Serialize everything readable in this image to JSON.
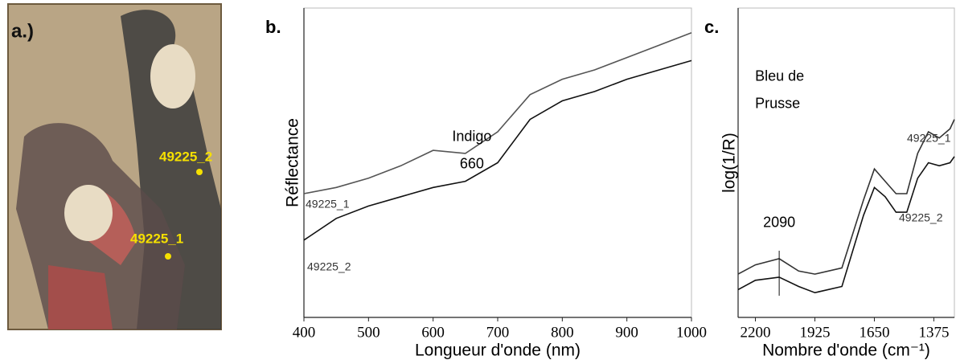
{
  "image_panel": {
    "label": "a.)",
    "points": [
      "49225_2",
      "49225_1"
    ]
  },
  "chart_data": [
    {
      "type": "line",
      "panel_label": "b.",
      "xlabel": "Longueur d'onde (nm)",
      "ylabel": "Réflectance",
      "xlim": [
        400,
        1000
      ],
      "xticks": [
        400,
        500,
        600,
        700,
        800,
        900,
        1000
      ],
      "ylim": [
        0,
        1
      ],
      "x": [
        400,
        450,
        500,
        550,
        600,
        650,
        700,
        750,
        800,
        850,
        900,
        950,
        1000
      ],
      "series": [
        {
          "name": "49225_1",
          "color": "#555555",
          "values": [
            0.4,
            0.42,
            0.45,
            0.49,
            0.54,
            0.53,
            0.6,
            0.72,
            0.77,
            0.8,
            0.84,
            0.88,
            0.92
          ]
        },
        {
          "name": "49225_2",
          "color": "#111111",
          "values": [
            0.25,
            0.32,
            0.36,
            0.39,
            0.42,
            0.44,
            0.5,
            0.64,
            0.7,
            0.73,
            0.77,
            0.8,
            0.83
          ]
        }
      ],
      "annotations": [
        {
          "text": "Indigo",
          "x": 660
        }
      ]
    },
    {
      "type": "line",
      "panel_label": "c.",
      "xlabel": "Nombre d'onde (cm⁻¹)",
      "ylabel": "log(1/R)",
      "xlim": [
        2280,
        1280
      ],
      "xticks": [
        2200,
        1925,
        1650,
        1375
      ],
      "ylim": [
        0,
        1
      ],
      "x": [
        2280,
        2200,
        2090,
        2000,
        1925,
        1800,
        1700,
        1650,
        1600,
        1550,
        1500,
        1450,
        1400,
        1350,
        1300,
        1280
      ],
      "series": [
        {
          "name": "49225_1",
          "color": "#333333",
          "values": [
            0.14,
            0.17,
            0.19,
            0.15,
            0.14,
            0.16,
            0.38,
            0.48,
            0.44,
            0.4,
            0.4,
            0.53,
            0.6,
            0.58,
            0.61,
            0.64
          ]
        },
        {
          "name": "49225_2",
          "color": "#111111",
          "values": [
            0.09,
            0.12,
            0.13,
            0.1,
            0.08,
            0.1,
            0.33,
            0.42,
            0.39,
            0.34,
            0.34,
            0.45,
            0.5,
            0.49,
            0.5,
            0.52
          ]
        }
      ],
      "annotations": [
        {
          "text": "Bleu de",
          "x": 2090
        },
        {
          "text": "Prusse",
          "x": 2090
        }
      ]
    }
  ],
  "markers": [
    {
      "x": 660
    },
    {
      "x": 2090
    }
  ]
}
